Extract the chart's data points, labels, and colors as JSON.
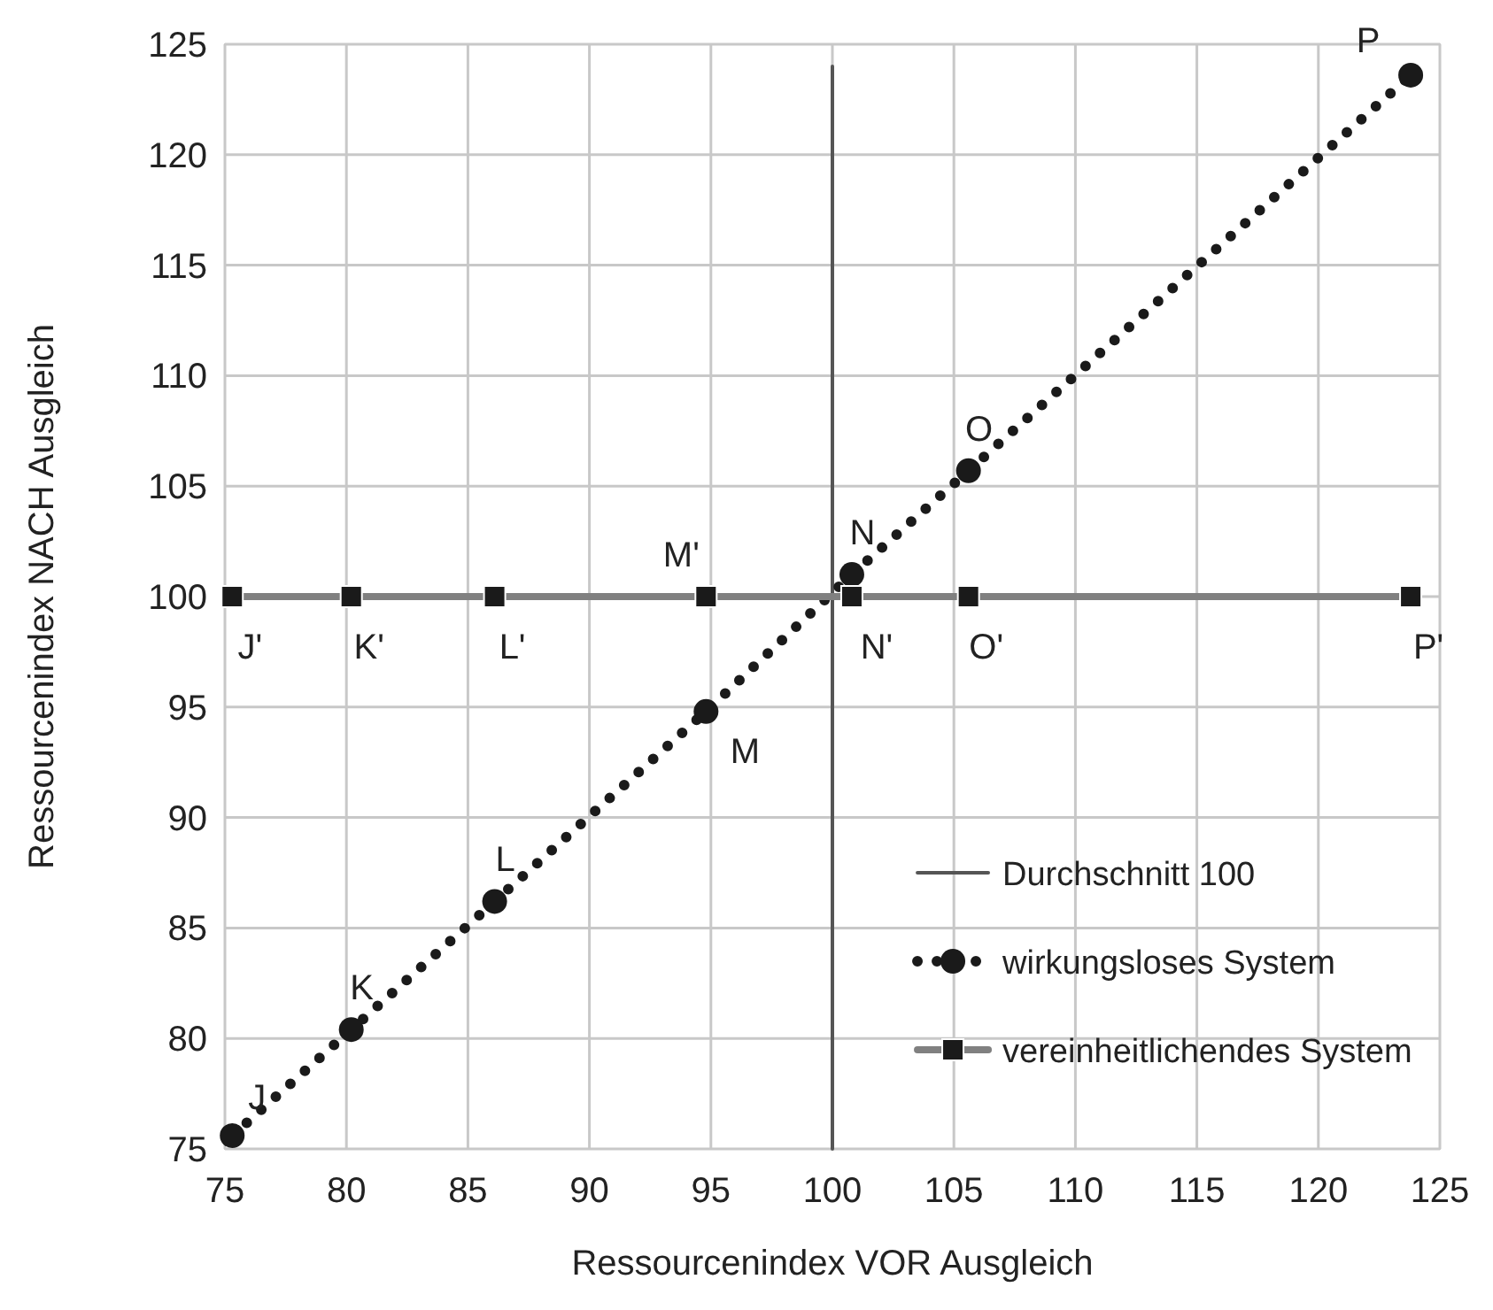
{
  "chart_data": {
    "type": "line",
    "xlabel": "Ressourcenindex VOR Ausgleich",
    "ylabel": "Ressourcenindex NACH Ausgleich",
    "series": [
      {
        "name": "Durchschnitt 100",
        "color": "#555555",
        "x": [
          100,
          100
        ],
        "values": [
          75,
          124
        ],
        "marker": "none",
        "line_style": "solid"
      },
      {
        "name": "wirkungsloses System",
        "color": "#1a1a1a",
        "x": [
          75.3,
          80.2,
          86.1,
          94.8,
          100.8,
          105.6,
          123.8
        ],
        "values": [
          75.6,
          80.4,
          86.2,
          94.8,
          101.0,
          105.7,
          123.6
        ],
        "marker": "circle",
        "line_style": "dotted"
      },
      {
        "name": "vereinheitlichendes System",
        "color": "#808080",
        "x": [
          75.3,
          80.2,
          86.1,
          94.8,
          100.8,
          105.6,
          123.8
        ],
        "values": [
          100,
          100,
          100,
          100,
          100,
          100,
          100
        ],
        "marker": "square",
        "line_style": "solid"
      }
    ],
    "annotations": [
      {
        "text": "J",
        "x": 75.3,
        "y": 75.6
      },
      {
        "text": "K",
        "x": 80.2,
        "y": 80.4
      },
      {
        "text": "L",
        "x": 86.1,
        "y": 86.2
      },
      {
        "text": "M",
        "x": 94.8,
        "y": 94.8
      },
      {
        "text": "N",
        "x": 100.8,
        "y": 101.0
      },
      {
        "text": "O",
        "x": 105.6,
        "y": 105.7
      },
      {
        "text": "P",
        "x": 123.8,
        "y": 123.6
      },
      {
        "text": "J'",
        "x": 75.3,
        "y": 100
      },
      {
        "text": "K'",
        "x": 80.2,
        "y": 100
      },
      {
        "text": "L'",
        "x": 86.1,
        "y": 100
      },
      {
        "text": "M'",
        "x": 94.8,
        "y": 100
      },
      {
        "text": "N'",
        "x": 100.8,
        "y": 100
      },
      {
        "text": "O'",
        "x": 105.6,
        "y": 100
      },
      {
        "text": "P'",
        "x": 123.8,
        "y": 100
      }
    ],
    "xlim": [
      75,
      125
    ],
    "xticks": [
      75,
      80,
      85,
      90,
      95,
      100,
      105,
      110,
      115,
      120,
      125
    ],
    "ylim": [
      75,
      125
    ],
    "yticks": [
      75,
      80,
      85,
      90,
      95,
      100,
      105,
      110,
      115,
      120,
      125
    ],
    "grid": true,
    "legend": "bottom right"
  }
}
